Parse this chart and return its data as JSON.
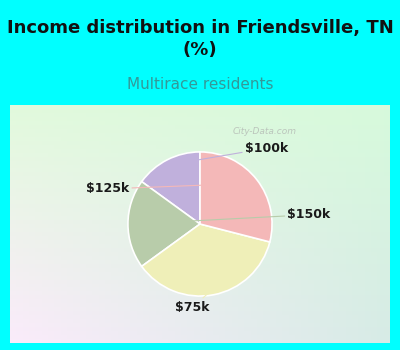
{
  "title": "Income distribution in Friendsville, TN\n(%)",
  "subtitle": "Multirace residents",
  "slices": [
    {
      "label": "$100k",
      "value": 15,
      "color": "#c0b0dc"
    },
    {
      "label": "$150k",
      "value": 20,
      "color": "#b8ccaa"
    },
    {
      "label": "$75k",
      "value": 36,
      "color": "#efefb8"
    },
    {
      "label": "$125k",
      "value": 29,
      "color": "#f4b8b8"
    }
  ],
  "title_fontsize": 13,
  "subtitle_fontsize": 11,
  "title_color": "#111111",
  "subtitle_color": "#339999",
  "label_fontsize": 9,
  "bg_cyan": "#00ffff",
  "border_width": 8,
  "watermark": "City-Data.com",
  "startangle": 90
}
